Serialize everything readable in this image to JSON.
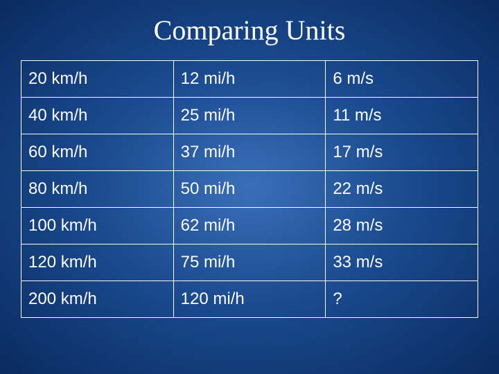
{
  "title": "Comparing Units",
  "title_fontsize": 40,
  "title_color": "#ffffff",
  "background": {
    "gradient_center": "#3a6fb8",
    "gradient_mid": "#1a4a8f",
    "gradient_edge": "#0a2a5f"
  },
  "table": {
    "type": "table",
    "border_color": "#ffffff",
    "text_color": "#ffffff",
    "cell_fontsize": 24,
    "cell_padding": "12px 10px",
    "columns": [
      "kmh",
      "mih",
      "ms"
    ],
    "rows": [
      {
        "kmh": "20 km/h",
        "mih": "12 mi/h",
        "ms": "6 m/s"
      },
      {
        "kmh": "40 km/h",
        "mih": "25 mi/h",
        "ms": "11 m/s"
      },
      {
        "kmh": "60 km/h",
        "mih": "37 mi/h",
        "ms": "17 m/s"
      },
      {
        "kmh": "80 km/h",
        "mih": "50 mi/h",
        "ms": "22 m/s"
      },
      {
        "kmh": "100 km/h",
        "mih": "62 mi/h",
        "ms": "28 m/s"
      },
      {
        "kmh": "120 km/h",
        "mih": "75 mi/h",
        "ms": "33 m/s"
      },
      {
        "kmh": "200 km/h",
        "mih": "120 mi/h",
        "ms": "?"
      }
    ]
  }
}
